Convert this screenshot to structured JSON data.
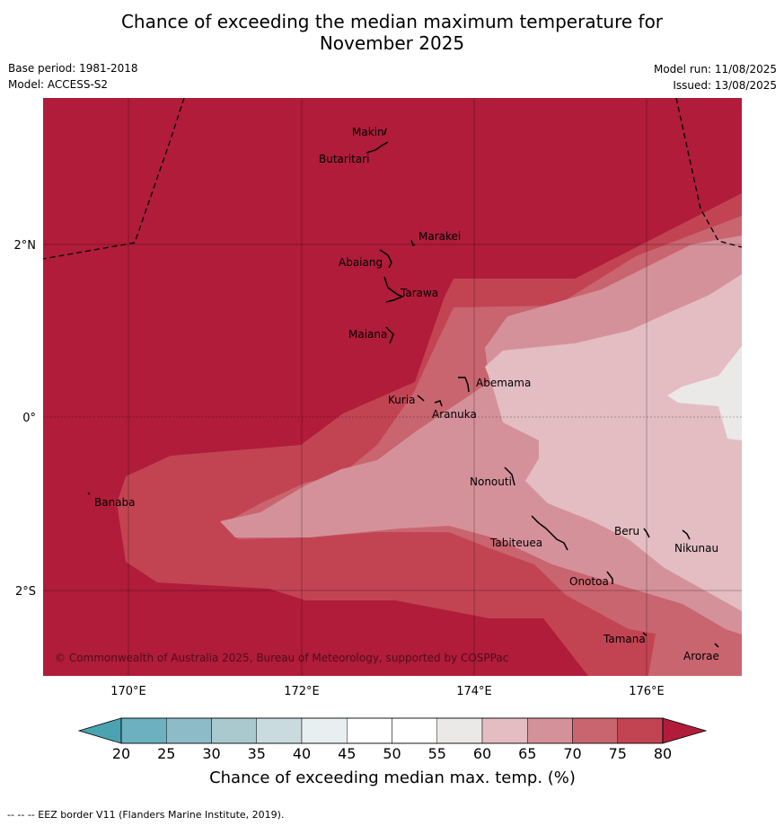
{
  "title_line1": "Chance of exceeding the median maximum temperature for",
  "title_line2": "November 2025",
  "base_period": "Base period: 1981-2018",
  "model": "Model: ACCESS-S2",
  "model_run": "Model run: 11/08/2025",
  "issued": "Issued: 13/08/2025",
  "copyright": "© Commonwealth of Australia 2025, Bureau of Meteorology, supported by COSPPac",
  "footer": "--  --  -- EEZ border V11 (Flanders Marine Institute, 2019).",
  "axes": {
    "lon_labels": [
      "170°E",
      "172°E",
      "174°E",
      "176°E"
    ],
    "lat_labels": [
      "2°N",
      "0°",
      "2°S"
    ]
  },
  "places": [
    "Makin",
    "Butaritari",
    "Marakei",
    "Abaiang",
    "Tarawa",
    "Maiana",
    "Abemama",
    "Kuria",
    "Aranuka",
    "Banaba",
    "Nonouti",
    "Beru",
    "Tabiteuea",
    "Nikunau",
    "Onotoa",
    "Tamana",
    "Arorae"
  ],
  "colorbar": {
    "label": "Chance of exceeding median max. temp. (%)",
    "ticks": [
      "20",
      "25",
      "30",
      "35",
      "40",
      "45",
      "50",
      "55",
      "60",
      "65",
      "70",
      "75",
      "80"
    ],
    "colors": [
      "#4ba3b1",
      "#6db0bf",
      "#8dbcc8",
      "#a9c9cf",
      "#c9dbde",
      "#e8eff1",
      "#ffffff",
      "#ffffff",
      "#ebe9e8",
      "#e3bdc2",
      "#d5919a",
      "#c9656f",
      "#c24453",
      "#b01c3a"
    ]
  },
  "map_colors": {
    "gt80": "#b01c3a",
    "p75_80": "#c24453",
    "p70_75": "#c9656f",
    "p65_70": "#d5919a",
    "p60_65": "#e3bdc2",
    "p55_60": "#ebe9e8"
  }
}
